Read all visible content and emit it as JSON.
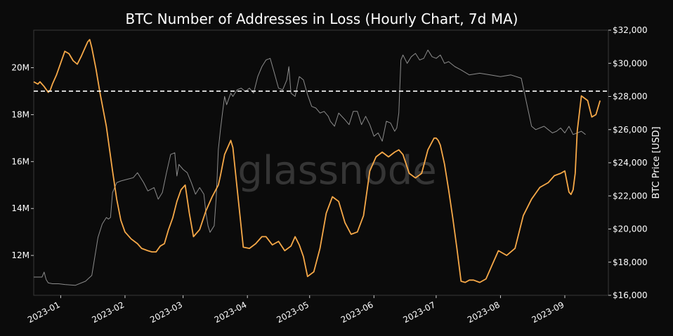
{
  "chart_data": {
    "type": "line",
    "title": "BTC Number of Addresses in Loss (Hourly Chart, 7d MA)",
    "ylabel_right": "BTC Price [USD]",
    "watermark": "glassnode",
    "x_tick_labels": [
      "2023-01",
      "2023-02",
      "2023-03",
      "2023-04",
      "2023-05",
      "2023-06",
      "2023-07",
      "2023-08",
      "2023-09"
    ],
    "x_ticks_day": [
      13,
      44,
      72,
      103,
      133,
      164,
      194,
      225,
      256
    ],
    "xlim_day": [
      0,
      277
    ],
    "y_left": {
      "ticks": [
        12000000,
        14000000,
        16000000,
        18000000,
        20000000
      ],
      "tick_labels": [
        "12M",
        "14M",
        "16M",
        "18M",
        "20M"
      ],
      "ylim": [
        10300000,
        21600000
      ]
    },
    "y_right": {
      "ticks": [
        16000,
        18000,
        20000,
        22000,
        24000,
        26000,
        28000,
        30000,
        32000
      ],
      "tick_labels": [
        "$16,000",
        "$18,000",
        "$20,000",
        "$22,000",
        "$24,000",
        "$26,000",
        "$28,000",
        "$30,000",
        "$32,000"
      ],
      "ylim": [
        16000,
        32000
      ]
    },
    "reference_line": {
      "value": 19000000,
      "axis": "left",
      "style": "dashed",
      "color": "#ffffff"
    },
    "colors": {
      "price": "#8c8c8c",
      "addresses": "#f7a948",
      "background": "#0b0b0b"
    },
    "series": [
      {
        "axis": "right",
        "x_day": [
          0,
          4,
          5,
          6,
          7,
          9,
          12,
          15,
          20,
          25,
          28,
          31,
          33,
          35,
          36,
          37,
          38,
          40,
          42,
          45,
          48,
          50,
          53,
          55,
          58,
          60,
          62,
          64,
          66,
          68,
          69,
          70,
          72,
          74,
          76,
          78,
          80,
          82,
          83,
          84,
          85,
          87,
          88,
          89,
          90,
          91,
          92,
          93,
          95,
          96,
          98,
          100,
          102,
          104,
          106,
          108,
          110,
          112,
          114,
          116,
          118,
          120,
          122,
          123,
          124,
          126,
          128,
          130,
          132,
          134,
          136,
          138,
          140,
          142,
          143,
          145,
          147,
          150,
          152,
          154,
          156,
          158,
          160,
          162,
          164,
          166,
          168,
          170,
          172,
          174,
          175,
          176,
          177,
          178,
          180,
          182,
          184,
          186,
          188,
          190,
          192,
          194,
          196,
          198,
          200,
          203,
          206,
          210,
          215,
          220,
          225,
          230,
          235,
          240,
          242,
          244,
          246,
          248,
          250,
          252,
          254,
          256,
          258,
          260,
          262,
          264,
          266
        ],
        "values": [
          17100,
          17100,
          17400,
          16950,
          16750,
          16700,
          16700,
          16650,
          16600,
          16850,
          17200,
          19500,
          20300,
          20700,
          20600,
          20700,
          22200,
          22800,
          22900,
          23000,
          23100,
          23400,
          22800,
          22300,
          22500,
          21800,
          22200,
          23400,
          24500,
          24600,
          23200,
          23900,
          23600,
          23400,
          22800,
          22100,
          22500,
          22100,
          21000,
          20200,
          19800,
          20200,
          22000,
          24800,
          26000,
          27000,
          28000,
          27500,
          28200,
          28000,
          28400,
          28500,
          28300,
          28500,
          28200,
          29200,
          29800,
          30200,
          30300,
          29400,
          28500,
          28400,
          29000,
          29800,
          28200,
          28000,
          29200,
          29000,
          28100,
          27400,
          27300,
          27000,
          27100,
          26800,
          26500,
          26200,
          27000,
          26600,
          26300,
          27100,
          27100,
          26300,
          26800,
          26300,
          25600,
          25800,
          25300,
          26500,
          26400,
          25900,
          26100,
          27000,
          30200,
          30500,
          30000,
          30400,
          30600,
          30200,
          30300,
          30800,
          30400,
          30300,
          30500,
          30000,
          30100,
          29800,
          29600,
          29300,
          29400,
          29300,
          29200,
          29300,
          29100,
          26200,
          26000,
          26100,
          26200,
          26000,
          25800,
          25900,
          26100,
          25800,
          26200,
          25700,
          25800,
          25900,
          25700
        ]
      },
      {
        "axis": "left",
        "x_day": [
          0,
          2,
          3,
          5,
          7,
          8,
          9,
          11,
          13,
          15,
          17,
          19,
          21,
          23,
          25,
          26,
          27,
          28,
          30,
          32,
          35,
          38,
          40,
          42,
          44,
          47,
          50,
          52,
          55,
          57,
          59,
          61,
          63,
          65,
          67,
          69,
          71,
          73,
          75,
          77,
          80,
          83,
          86,
          89,
          90,
          92,
          94,
          95,
          96,
          98,
          101,
          104,
          107,
          110,
          112,
          115,
          118,
          121,
          124,
          126,
          128,
          130,
          132,
          135,
          138,
          141,
          144,
          147,
          150,
          153,
          156,
          159,
          162,
          165,
          168,
          171,
          174,
          176,
          178,
          181,
          184,
          187,
          190,
          193,
          194,
          195,
          196,
          198,
          200,
          202,
          204,
          206,
          208,
          210,
          212,
          215,
          218,
          221,
          224,
          228,
          232,
          236,
          240,
          244,
          248,
          251,
          254,
          256,
          258,
          259,
          260,
          261,
          262,
          264,
          267,
          269,
          271,
          273
        ],
        "values": [
          19400,
          19300,
          19400,
          19200,
          18950,
          19050,
          19300,
          19700,
          20200,
          20700,
          20600,
          20300,
          20150,
          20500,
          20900,
          21100,
          21200,
          20850,
          19950,
          18900,
          17500,
          15600,
          14400,
          13500,
          13000,
          12700,
          12500,
          12300,
          12200,
          12150,
          12150,
          12400,
          12500,
          13100,
          13600,
          14300,
          14800,
          15000,
          13800,
          12800,
          13100,
          13900,
          14500,
          15000,
          15400,
          16300,
          16700,
          16900,
          16600,
          14900,
          12350,
          12300,
          12500,
          12800,
          12800,
          12450,
          12600,
          12200,
          12400,
          12800,
          12450,
          11950,
          11100,
          11300,
          12300,
          13800,
          14500,
          14300,
          13400,
          12900,
          13000,
          13700,
          15600,
          16200,
          16400,
          16200,
          16400,
          16500,
          16300,
          15500,
          15300,
          15500,
          16500,
          17000,
          17000,
          16900,
          16700,
          15900,
          14800,
          13600,
          12300,
          10900,
          10850,
          10950,
          10950,
          10850,
          11000,
          11600,
          12200,
          12000,
          12300,
          13700,
          14400,
          14900,
          15100,
          15400,
          15500,
          15600,
          14700,
          14600,
          14800,
          15500,
          17300,
          18800,
          18600,
          17900,
          18000,
          18600
        ]
      }
    ]
  }
}
